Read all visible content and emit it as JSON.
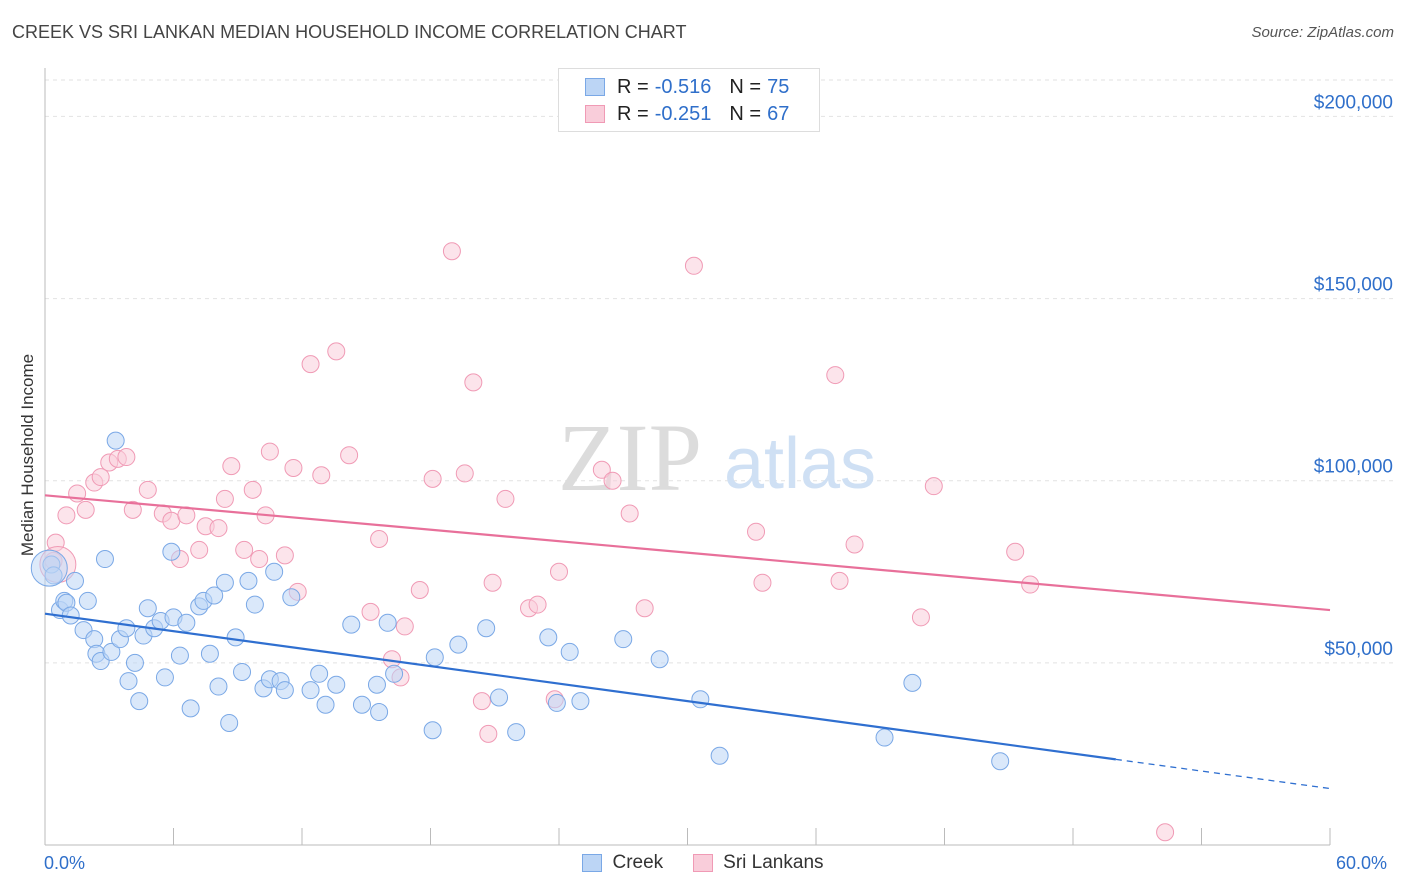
{
  "title": "CREEK VS SRI LANKAN MEDIAN HOUSEHOLD INCOME CORRELATION CHART",
  "source": "Source: ZipAtlas.com",
  "watermark": {
    "zip": "ZIP",
    "atlas": "atlas"
  },
  "legend_top": [
    {
      "r_label": "R = ",
      "r_value": "-0.516",
      "n_label": "N = ",
      "n_value": "75"
    },
    {
      "r_label": "R = ",
      "r_value": "-0.251",
      "n_label": "N = ",
      "n_value": "67"
    }
  ],
  "colors": {
    "creek": "#8ab8ef",
    "creek_line": "#2f6fd0",
    "sri": "#f4a9c0",
    "sri_line": "#e8709a",
    "accent": "#2f6fca"
  },
  "chart_data": {
    "type": "scatter",
    "title": "CREEK VS SRI LANKAN MEDIAN HOUSEHOLD INCOME CORRELATION CHART",
    "xlabel": "",
    "ylabel": "Median Household Income",
    "xlim": [
      0,
      60
    ],
    "ylim": [
      0,
      210000
    ],
    "x_tick_labels": [
      "0.0%",
      "60.0%"
    ],
    "y_ticks": [
      {
        "value": 50000,
        "label": "$50,000"
      },
      {
        "value": 100000,
        "label": "$100,000"
      },
      {
        "value": 150000,
        "label": "$150,000"
      },
      {
        "value": 200000,
        "label": "$200,000"
      }
    ],
    "grid": true,
    "legend_position": "bottom",
    "series": [
      {
        "name": "Creek",
        "trend": {
          "x0": 0,
          "y0": 63500,
          "x1": 50,
          "y1": 23500,
          "x_dash_end": 60,
          "y_dash_end": 15500
        },
        "points": [
          [
            0.3,
            77000
          ],
          [
            0.4,
            74000
          ],
          [
            0.7,
            64500
          ],
          [
            0.9,
            67000
          ],
          [
            1.0,
            66500
          ],
          [
            1.2,
            63000
          ],
          [
            1.4,
            72500
          ],
          [
            1.8,
            59000
          ],
          [
            2.0,
            67000
          ],
          [
            2.3,
            56500
          ],
          [
            2.4,
            52500
          ],
          [
            2.6,
            50500
          ],
          [
            2.8,
            78500
          ],
          [
            3.1,
            53000
          ],
          [
            3.3,
            111000
          ],
          [
            3.5,
            56500
          ],
          [
            3.8,
            59500
          ],
          [
            3.9,
            45000
          ],
          [
            4.2,
            50000
          ],
          [
            4.4,
            39500
          ],
          [
            4.6,
            57500
          ],
          [
            4.8,
            65000
          ],
          [
            5.1,
            59500
          ],
          [
            5.4,
            61500
          ],
          [
            5.6,
            46000
          ],
          [
            5.9,
            80500
          ],
          [
            6.0,
            62500
          ],
          [
            6.3,
            52000
          ],
          [
            6.6,
            61000
          ],
          [
            6.8,
            37500
          ],
          [
            7.2,
            65500
          ],
          [
            7.4,
            67000
          ],
          [
            7.7,
            52500
          ],
          [
            7.9,
            68500
          ],
          [
            8.1,
            43500
          ],
          [
            8.4,
            72000
          ],
          [
            8.6,
            33500
          ],
          [
            8.9,
            57000
          ],
          [
            9.2,
            47500
          ],
          [
            9.5,
            72500
          ],
          [
            9.8,
            66000
          ],
          [
            10.2,
            43000
          ],
          [
            10.5,
            45500
          ],
          [
            10.7,
            75000
          ],
          [
            11.0,
            45000
          ],
          [
            11.2,
            42500
          ],
          [
            11.5,
            68000
          ],
          [
            12.4,
            42500
          ],
          [
            12.8,
            47000
          ],
          [
            13.1,
            38500
          ],
          [
            13.6,
            44000
          ],
          [
            14.3,
            60500
          ],
          [
            14.8,
            38500
          ],
          [
            15.5,
            44000
          ],
          [
            15.6,
            36500
          ],
          [
            16.0,
            61000
          ],
          [
            16.3,
            47000
          ],
          [
            18.1,
            31500
          ],
          [
            18.2,
            51500
          ],
          [
            19.3,
            55000
          ],
          [
            20.6,
            59500
          ],
          [
            21.2,
            40500
          ],
          [
            22.0,
            31000
          ],
          [
            23.5,
            57000
          ],
          [
            23.9,
            39000
          ],
          [
            24.5,
            53000
          ],
          [
            25.0,
            39500
          ],
          [
            27.0,
            56500
          ],
          [
            28.7,
            51000
          ],
          [
            30.6,
            40000
          ],
          [
            31.5,
            24500
          ],
          [
            39.2,
            29500
          ],
          [
            40.5,
            44500
          ],
          [
            44.6,
            23000
          ],
          [
            0.2,
            76000
          ]
        ]
      },
      {
        "name": "Sri Lankans",
        "trend": {
          "x0": 0,
          "y0": 96000,
          "x1": 60,
          "y1": 64500
        },
        "points": [
          [
            0.4,
            78000
          ],
          [
            0.5,
            83000
          ],
          [
            1.0,
            90500
          ],
          [
            1.5,
            96500
          ],
          [
            1.9,
            92000
          ],
          [
            2.3,
            99500
          ],
          [
            2.6,
            101000
          ],
          [
            3.0,
            105000
          ],
          [
            3.4,
            106000
          ],
          [
            3.8,
            106500
          ],
          [
            4.1,
            92000
          ],
          [
            4.8,
            97500
          ],
          [
            5.5,
            91000
          ],
          [
            5.9,
            89000
          ],
          [
            6.3,
            78500
          ],
          [
            6.6,
            90500
          ],
          [
            7.2,
            81000
          ],
          [
            7.5,
            87500
          ],
          [
            8.1,
            87000
          ],
          [
            8.4,
            95000
          ],
          [
            8.7,
            104000
          ],
          [
            9.3,
            81000
          ],
          [
            9.7,
            97500
          ],
          [
            10.0,
            78500
          ],
          [
            10.3,
            90500
          ],
          [
            10.5,
            108000
          ],
          [
            11.2,
            79500
          ],
          [
            11.6,
            103500
          ],
          [
            11.8,
            69500
          ],
          [
            12.4,
            132000
          ],
          [
            12.9,
            101500
          ],
          [
            13.6,
            135500
          ],
          [
            14.2,
            107000
          ],
          [
            15.2,
            64000
          ],
          [
            15.6,
            84000
          ],
          [
            16.2,
            51000
          ],
          [
            16.6,
            46000
          ],
          [
            16.8,
            60000
          ],
          [
            17.5,
            70000
          ],
          [
            18.1,
            100500
          ],
          [
            19.0,
            163000
          ],
          [
            19.6,
            102000
          ],
          [
            20.0,
            127000
          ],
          [
            20.4,
            39500
          ],
          [
            20.7,
            30500
          ],
          [
            20.9,
            72000
          ],
          [
            21.5,
            95000
          ],
          [
            22.6,
            65000
          ],
          [
            23.0,
            66000
          ],
          [
            23.8,
            40000
          ],
          [
            24.0,
            75000
          ],
          [
            26.0,
            103000
          ],
          [
            26.5,
            100000
          ],
          [
            27.3,
            91000
          ],
          [
            28.0,
            65000
          ],
          [
            30.3,
            159000
          ],
          [
            33.2,
            86000
          ],
          [
            33.5,
            72000
          ],
          [
            36.9,
            129000
          ],
          [
            37.1,
            72500
          ],
          [
            37.8,
            82500
          ],
          [
            40.9,
            62500
          ],
          [
            41.5,
            98500
          ],
          [
            45.3,
            80500
          ],
          [
            46.0,
            71500
          ],
          [
            52.3,
            3500
          ],
          [
            0.6,
            77000
          ]
        ]
      }
    ]
  },
  "axis_text": {
    "ylabel": "Median Household Income",
    "x_min": "0.0%",
    "x_max": "60.0%"
  },
  "legend_bottom": [
    {
      "label": "Creek"
    },
    {
      "label": "Sri Lankans"
    }
  ]
}
